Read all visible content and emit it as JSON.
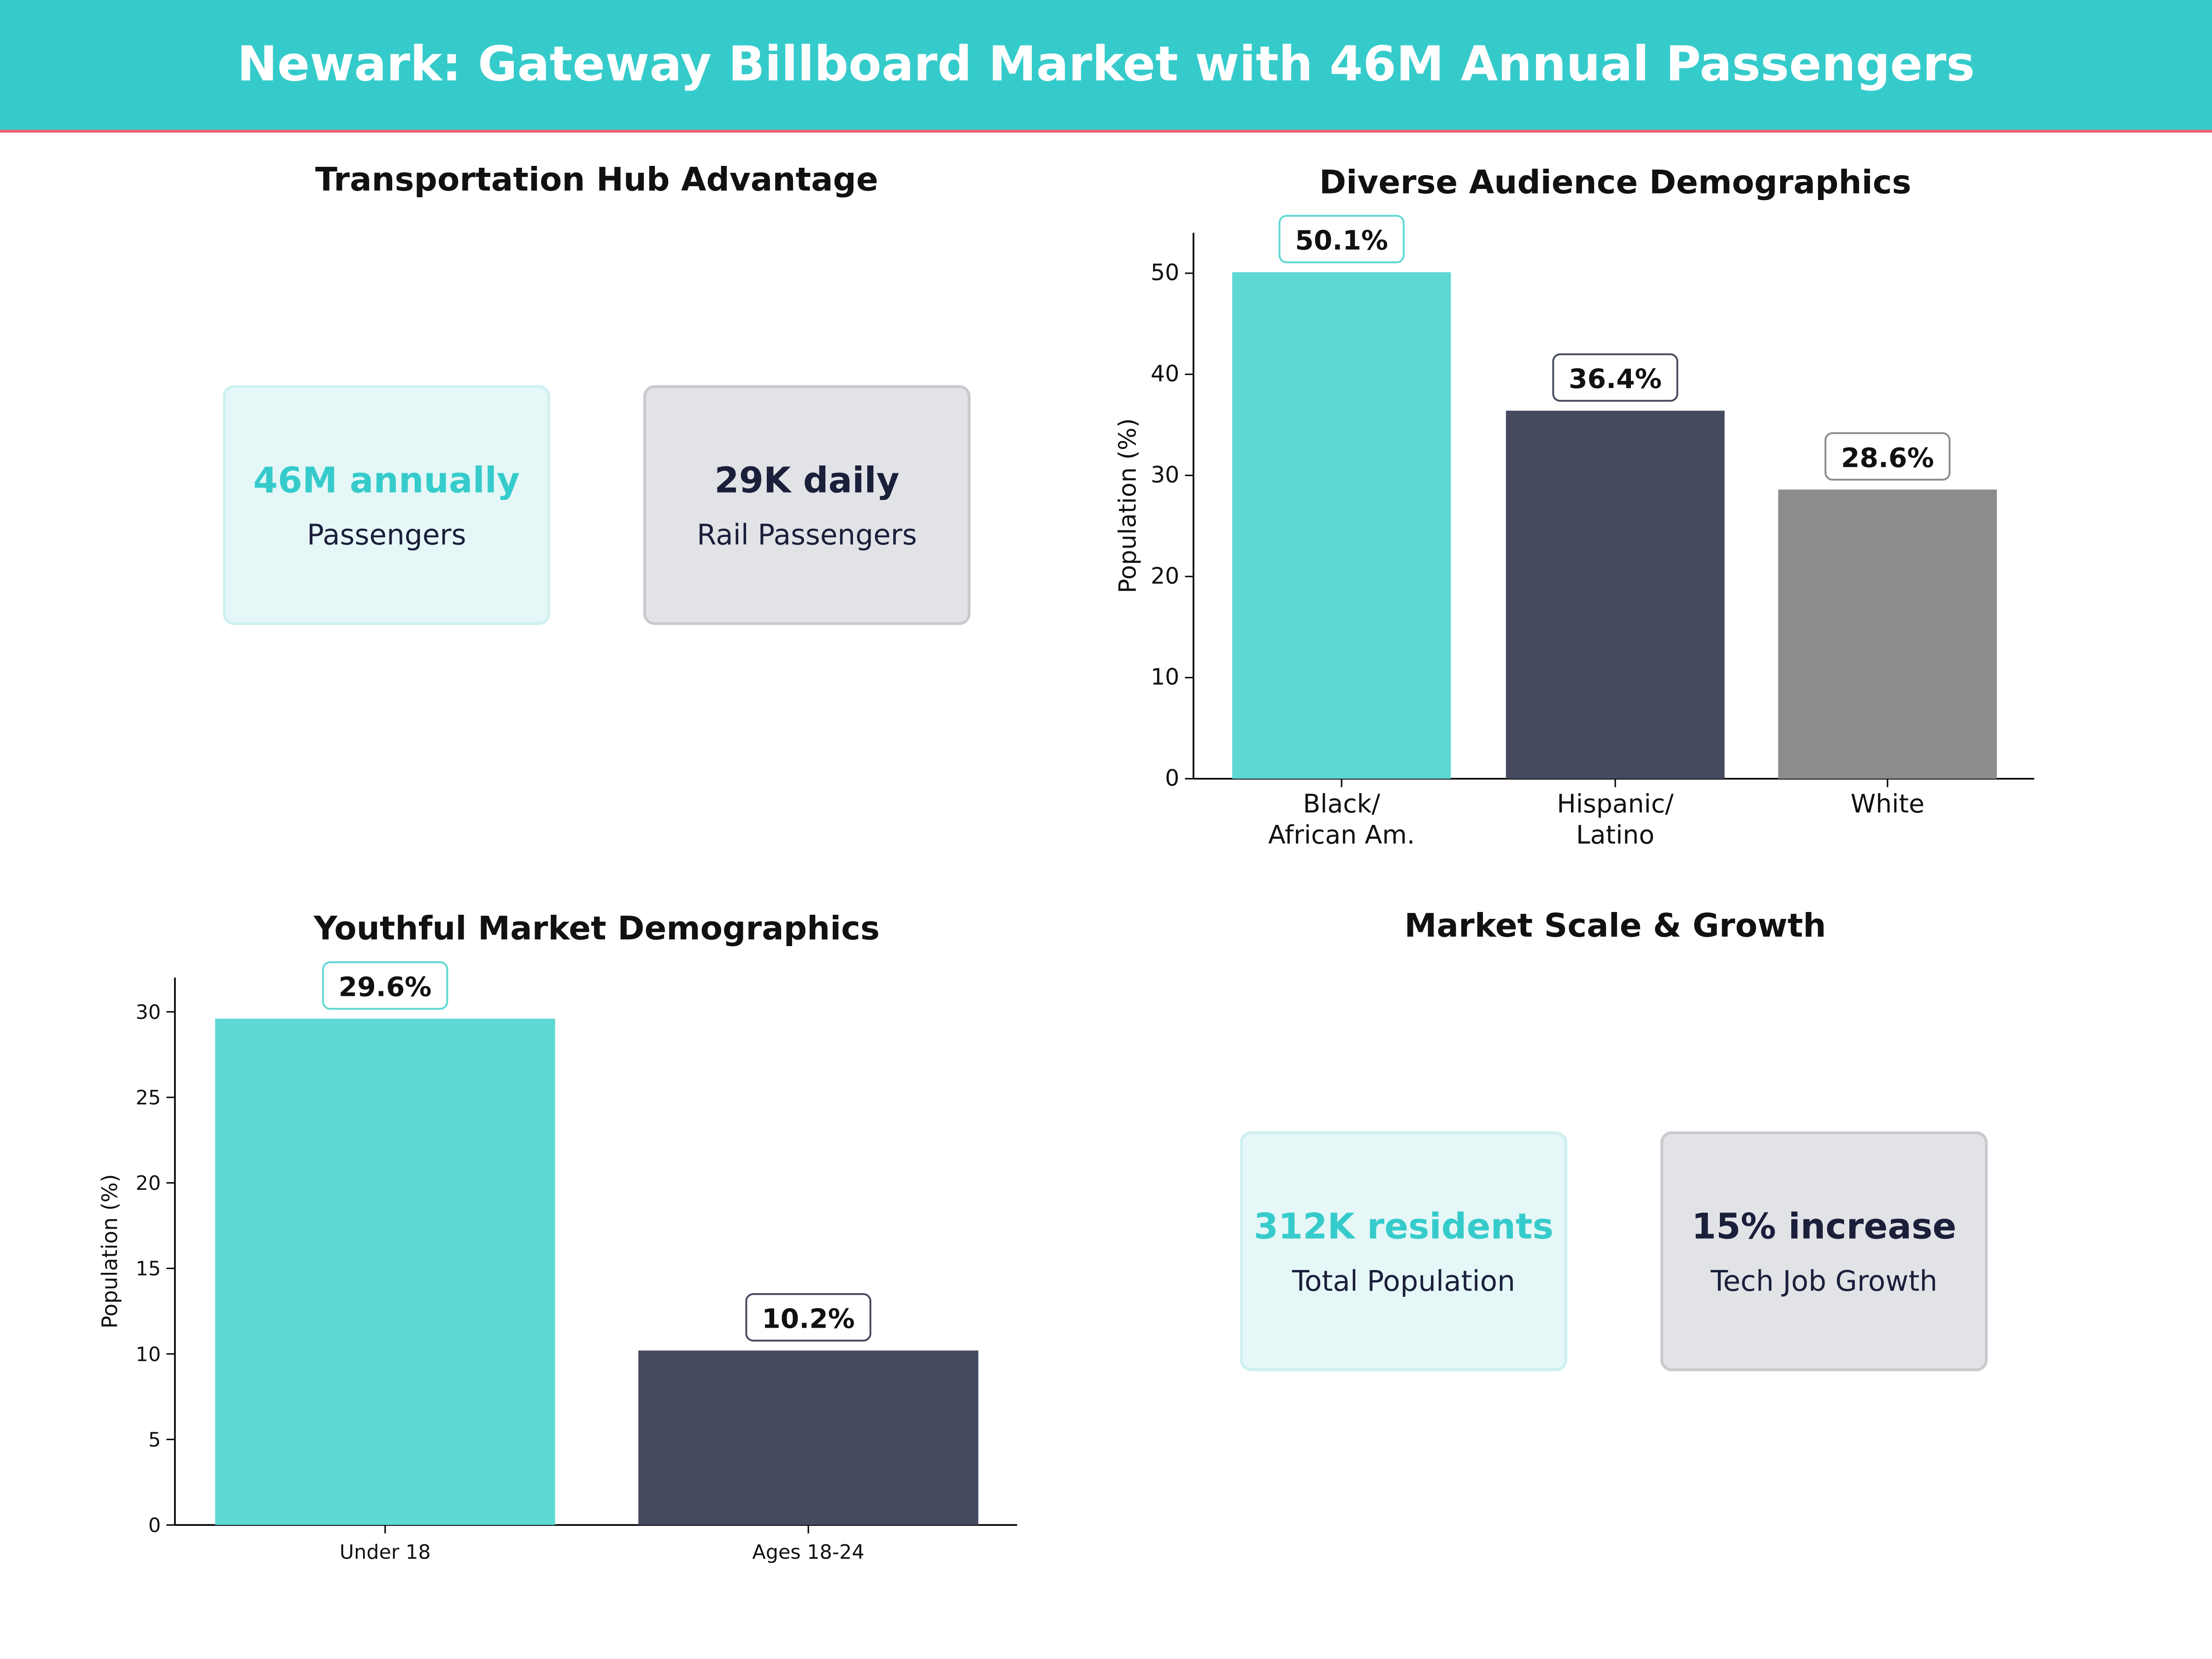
{
  "header": {
    "title": "Newark: Gateway Billboard Market with 46M Annual Passengers"
  },
  "panels": {
    "transport": {
      "title": "Transportation Hub Advantage",
      "cards": [
        {
          "value": "46M annually",
          "label": "Passengers"
        },
        {
          "value": "29K daily",
          "label": "Rail Passengers"
        }
      ]
    },
    "scale": {
      "title": "Market Scale & Growth",
      "cards": [
        {
          "value": "312K residents",
          "label": "Total Population"
        },
        {
          "value": "15% increase",
          "label": "Tech Job Growth"
        }
      ]
    }
  },
  "colors": {
    "header": "#36cbcb",
    "accent_line": "#f06070",
    "teal": "#5dd8d4",
    "navy": "#454a5f",
    "gray": "#8c8c8c"
  },
  "chart_data": [
    {
      "type": "bar",
      "title": "Diverse Audience Demographics",
      "xlabel": "",
      "ylabel": "Population (%)",
      "categories": [
        "Black/\nAfrican Am.",
        "Hispanic/\nLatino",
        "White"
      ],
      "values": [
        50.1,
        36.4,
        28.6
      ],
      "data_labels": [
        "50.1%",
        "36.4%",
        "28.6%"
      ],
      "ylim": [
        0,
        54
      ],
      "yticks": [
        0,
        10,
        20,
        30,
        40,
        50
      ],
      "bar_colors": [
        "#5dd8d4",
        "#454a5f",
        "#8c8c8c"
      ],
      "label_border_colors": [
        "#5dd8d4",
        "#454a5f",
        "#8c8c8c"
      ],
      "grid": false
    },
    {
      "type": "bar",
      "title": "Youthful Market Demographics",
      "xlabel": "",
      "ylabel": "Population (%)",
      "categories": [
        "Under 18",
        "Ages 18-24"
      ],
      "values": [
        29.6,
        10.2
      ],
      "data_labels": [
        "29.6%",
        "10.2%"
      ],
      "ylim": [
        0,
        32
      ],
      "yticks": [
        0,
        5,
        10,
        15,
        20,
        25,
        30
      ],
      "bar_colors": [
        "#5dd8d4",
        "#454a5f"
      ],
      "label_border_colors": [
        "#5dd8d4",
        "#454a5f"
      ],
      "grid": false
    }
  ]
}
